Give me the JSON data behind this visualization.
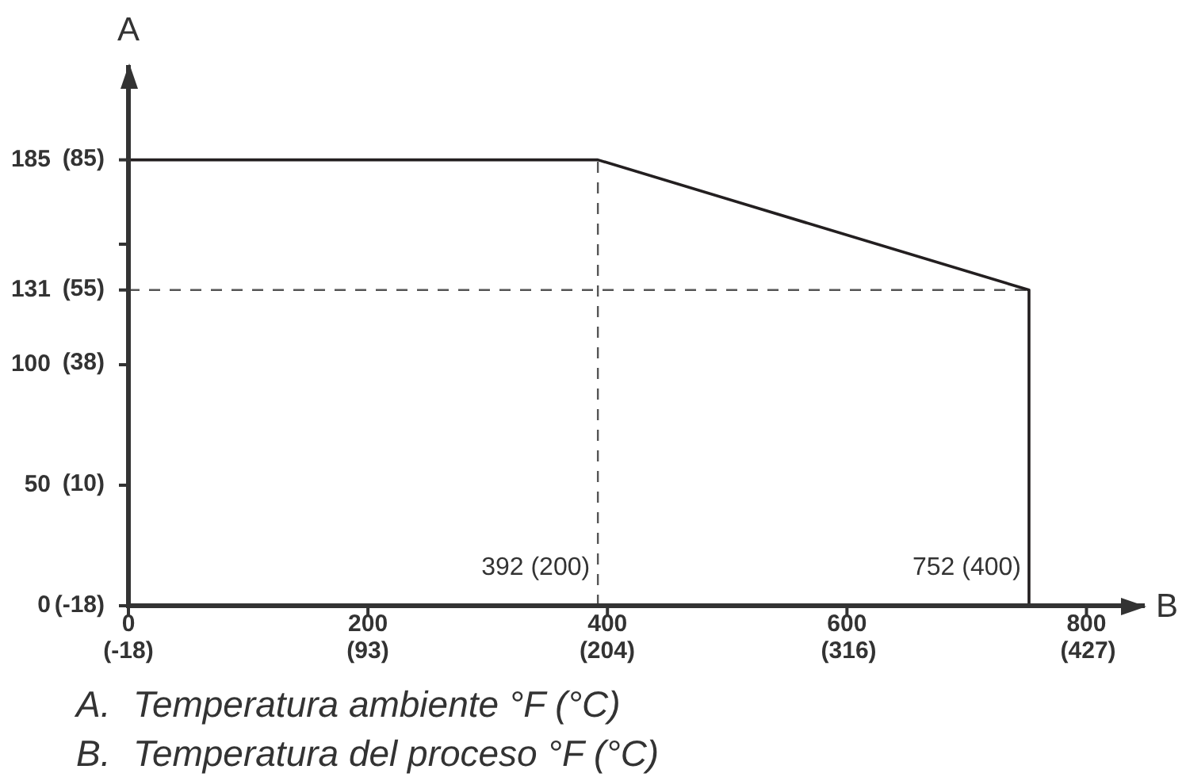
{
  "chart_data": {
    "type": "line",
    "xlabel": "B",
    "y2label": "A",
    "xlim": [
      0,
      850
    ],
    "ylim": [
      0,
      225
    ],
    "xticks": [
      0,
      200,
      400,
      600,
      800
    ],
    "yticks": [
      0,
      50,
      100,
      131,
      {
        "value": 150,
        "label": null
      },
      185
    ],
    "x2lim": [
      -18,
      454
    ],
    "x2ticks": [
      {
        "value": -18,
        "label": "(-18)"
      },
      {
        "value": 93,
        "label": "(93)"
      },
      {
        "value": 204,
        "label": "(204)"
      },
      {
        "value": 316,
        "label": "(316)"
      },
      {
        "value": 427,
        "label": "(427)"
      }
    ],
    "y2lim": [
      -18,
      107
    ],
    "y2ticks": [
      {
        "value": -18,
        "label": "(-18)"
      },
      {
        "value": 10,
        "label": "(10)"
      },
      {
        "value": 38,
        "label": "(38)"
      },
      {
        "value": 55,
        "label": "(55)"
      },
      {
        "value": 85,
        "label": "(85)"
      }
    ],
    "series": [
      {
        "x": [
          0,
          392,
          752,
          752
        ],
        "values": [
          185,
          185,
          131,
          0
        ],
        "color": "#231f20"
      },
      {
        "x": [
          392,
          392
        ],
        "values": [
          0,
          185
        ],
        "color": "#555555",
        "line_style": "dashed"
      },
      {
        "x": [
          0,
          752
        ],
        "values": [
          131,
          131
        ],
        "color": "#555555",
        "line_style": "dashed"
      }
    ],
    "annotations": [
      "392 (200)",
      "752 (400)",
      "A. Temperatura ambiente °F (°C)",
      "B. Temperatura del proceso °F (°C)"
    ],
    "grid": false,
    "marker": "none",
    "line_style": "solid"
  }
}
